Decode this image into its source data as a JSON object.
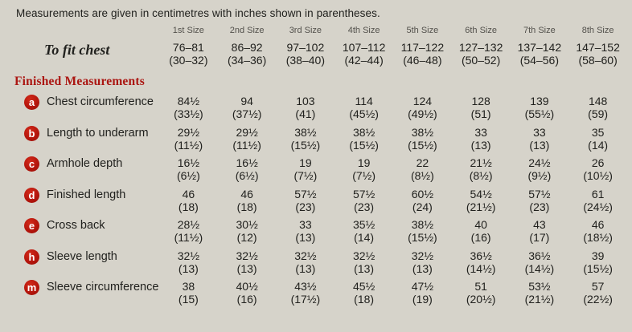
{
  "caption": "Measurements are given in centimetres with inches shown in parentheses.",
  "size_headers": [
    "1st Size",
    "2nd Size",
    "3rd Size",
    "4th Size",
    "5th Size",
    "6th Size",
    "7th Size",
    "8th Size"
  ],
  "to_fit": {
    "label": "To fit chest",
    "cm": [
      "76–81",
      "86–92",
      "97–102",
      "107–112",
      "117–122",
      "127–132",
      "137–142",
      "147–152"
    ],
    "inches": [
      "(30–32)",
      "(34–36)",
      "(38–40)",
      "(42–44)",
      "(46–48)",
      "(50–52)",
      "(54–56)",
      "(58–60)"
    ]
  },
  "section_heading": "Finished Measurements",
  "rows": [
    {
      "key": "a",
      "label": "Chest circumference",
      "cm": [
        "84½",
        "94",
        "103",
        "114",
        "124",
        "128",
        "139",
        "148"
      ],
      "inches": [
        "(33½)",
        "(37½)",
        "(41)",
        "(45½)",
        "(49½)",
        "(51)",
        "(55½)",
        "(59)"
      ]
    },
    {
      "key": "b",
      "label": "Length to underarm",
      "cm": [
        "29½",
        "29½",
        "38½",
        "38½",
        "38½",
        "33",
        "33",
        "35"
      ],
      "inches": [
        "(11½)",
        "(11½)",
        "(15½)",
        "(15½)",
        "(15½)",
        "(13)",
        "(13)",
        "(14)"
      ]
    },
    {
      "key": "c",
      "label": "Armhole depth",
      "cm": [
        "16½",
        "16½",
        "19",
        "19",
        "22",
        "21½",
        "24½",
        "26"
      ],
      "inches": [
        "(6½)",
        "(6½)",
        "(7½)",
        "(7½)",
        "(8½)",
        "(8½)",
        "(9½)",
        "(10½)"
      ]
    },
    {
      "key": "d",
      "label": "Finished length",
      "cm": [
        "46",
        "46",
        "57½",
        "57½",
        "60½",
        "54½",
        "57½",
        "61"
      ],
      "inches": [
        "(18)",
        "(18)",
        "(23)",
        "(23)",
        "(24)",
        "(21½)",
        "(23)",
        "(24½)"
      ]
    },
    {
      "key": "e",
      "label": "Cross back",
      "cm": [
        "28½",
        "30½",
        "33",
        "35½",
        "38½",
        "40",
        "43",
        "46"
      ],
      "inches": [
        "(11½)",
        "(12)",
        "(13)",
        "(14)",
        "(15½)",
        "(16)",
        "(17)",
        "(18½)"
      ]
    },
    {
      "key": "h",
      "label": "Sleeve length",
      "cm": [
        "32½",
        "32½",
        "32½",
        "32½",
        "32½",
        "36½",
        "36½",
        "39"
      ],
      "inches": [
        "(13)",
        "(13)",
        "(13)",
        "(13)",
        "(13)",
        "(14½)",
        "(14½)",
        "(15½)"
      ]
    },
    {
      "key": "m",
      "label": "Sleeve circumference",
      "cm": [
        "38",
        "40½",
        "43½",
        "45½",
        "47½",
        "51",
        "53½",
        "57"
      ],
      "inches": [
        "(15)",
        "(16)",
        "(17½)",
        "(18)",
        "(19)",
        "(20½)",
        "(21½)",
        "(22½)"
      ]
    }
  ],
  "colors": {
    "background": "#d6d3ca",
    "badge_red": "#b5150c",
    "heading_red": "#ab1612",
    "text": "#21211e",
    "muted_header": "#53514c"
  }
}
